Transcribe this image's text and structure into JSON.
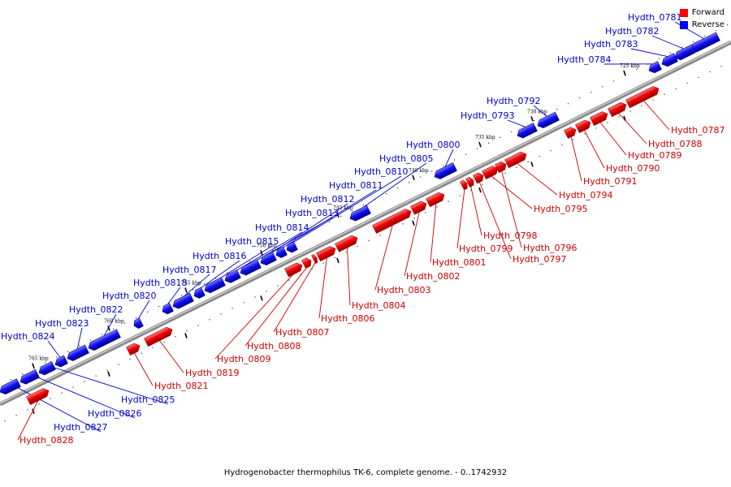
{
  "caption": "Hydrogenobacter thermophilus TK-6, complete genome. - 0..1742932",
  "legend": {
    "forward_label": "Forward",
    "reverse_label": "Reverse",
    "forward_color": "#ff0000",
    "reverse_color": "#0000ff"
  },
  "axis_ticks": [
    "725 kbp",
    "730 kbp",
    "735 kbp",
    "740 kbp",
    "745 kbp",
    "750 kbp",
    "755 kbp",
    "760 kbp",
    "765 kbp"
  ],
  "genes": [
    {
      "name": "Hydth_0781",
      "strand": "reverse"
    },
    {
      "name": "Hydth_0782",
      "strand": "reverse"
    },
    {
      "name": "Hydth_0783",
      "strand": "reverse"
    },
    {
      "name": "Hydth_0784",
      "strand": "reverse"
    },
    {
      "name": "Hydth_0787",
      "strand": "forward"
    },
    {
      "name": "Hydth_0788",
      "strand": "forward"
    },
    {
      "name": "Hydth_0789",
      "strand": "forward"
    },
    {
      "name": "Hydth_0790",
      "strand": "forward"
    },
    {
      "name": "Hydth_0791",
      "strand": "forward"
    },
    {
      "name": "Hydth_0792",
      "strand": "reverse"
    },
    {
      "name": "Hydth_0793",
      "strand": "reverse"
    },
    {
      "name": "Hydth_0794",
      "strand": "forward"
    },
    {
      "name": "Hydth_0795",
      "strand": "forward"
    },
    {
      "name": "Hydth_0796",
      "strand": "forward"
    },
    {
      "name": "Hydth_0797",
      "strand": "forward"
    },
    {
      "name": "Hydth_0798",
      "strand": "forward"
    },
    {
      "name": "Hydth_0799",
      "strand": "forward"
    },
    {
      "name": "Hydth_0800",
      "strand": "reverse"
    },
    {
      "name": "Hydth_0801",
      "strand": "forward"
    },
    {
      "name": "Hydth_0802",
      "strand": "forward"
    },
    {
      "name": "Hydth_0803",
      "strand": "forward"
    },
    {
      "name": "Hydth_0804",
      "strand": "forward"
    },
    {
      "name": "Hydth_0805",
      "strand": "reverse"
    },
    {
      "name": "Hydth_0806",
      "strand": "forward"
    },
    {
      "name": "Hydth_0807",
      "strand": "forward"
    },
    {
      "name": "Hydth_0808",
      "strand": "forward"
    },
    {
      "name": "Hydth_0809",
      "strand": "forward"
    },
    {
      "name": "Hydth_0810",
      "strand": "reverse"
    },
    {
      "name": "Hydth_0811",
      "strand": "reverse"
    },
    {
      "name": "Hydth_0812",
      "strand": "reverse"
    },
    {
      "name": "Hydth_0813",
      "strand": "reverse"
    },
    {
      "name": "Hydth_0814",
      "strand": "reverse"
    },
    {
      "name": "Hydth_0815",
      "strand": "reverse"
    },
    {
      "name": "Hydth_0816",
      "strand": "reverse"
    },
    {
      "name": "Hydth_0817",
      "strand": "reverse"
    },
    {
      "name": "Hydth_0818",
      "strand": "reverse"
    },
    {
      "name": "Hydth_0819",
      "strand": "forward"
    },
    {
      "name": "Hydth_0820",
      "strand": "reverse"
    },
    {
      "name": "Hydth_0821",
      "strand": "forward"
    },
    {
      "name": "Hydth_0822",
      "strand": "reverse"
    },
    {
      "name": "Hydth_0823",
      "strand": "reverse"
    },
    {
      "name": "Hydth_0824",
      "strand": "reverse"
    },
    {
      "name": "Hydth_0825",
      "strand": "reverse"
    },
    {
      "name": "Hydth_0826",
      "strand": "reverse"
    },
    {
      "name": "Hydth_0827",
      "strand": "reverse"
    },
    {
      "name": "Hydth_0828",
      "strand": "forward"
    }
  ]
}
